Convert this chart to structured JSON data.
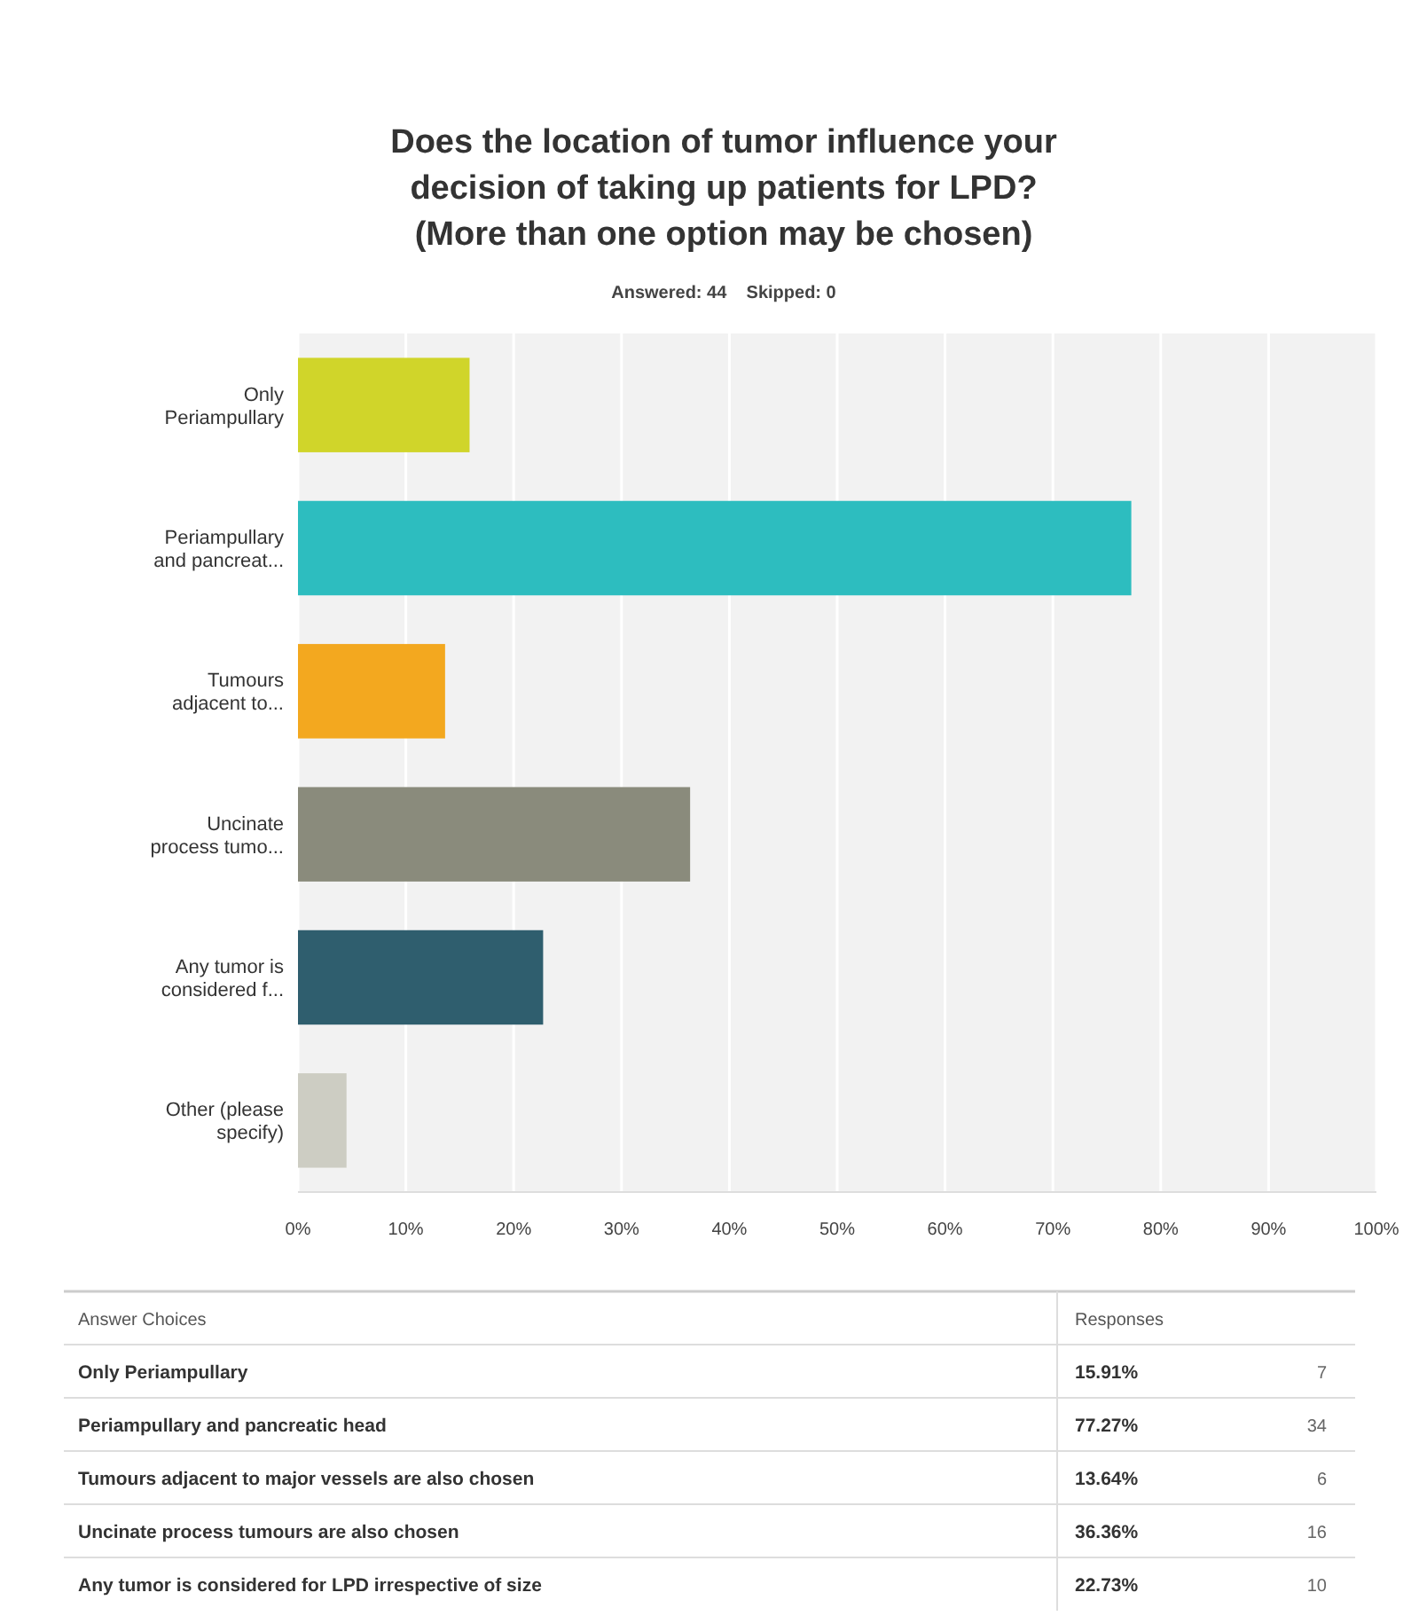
{
  "chart_data": {
    "type": "bar",
    "orientation": "horizontal",
    "title": "Does the location of tumor influence your decision of taking up patients for LPD? (More than one option may be chosen)",
    "subtitle": "Answered: 44    Skipped: 0",
    "categories": [
      "Only Periampullary",
      "Periampullary and pancreat...",
      "Tumours adjacent to...",
      "Uncinate process tumo...",
      "Any tumor is considered f...",
      "Other (please specify)"
    ],
    "values": [
      15.91,
      77.27,
      13.64,
      36.36,
      22.73,
      4.5
    ],
    "colors": [
      "#d0d52a",
      "#2dbdbf",
      "#f3a81f",
      "#8a8b7c",
      "#2f5e6e",
      "#cdcdc3"
    ],
    "xlim": [
      0,
      100
    ],
    "xticks": [
      {
        "value": 0,
        "label": "0%"
      },
      {
        "value": 10,
        "label": "10%"
      },
      {
        "value": 20,
        "label": "20%"
      },
      {
        "value": 30,
        "label": "30%"
      },
      {
        "value": 40,
        "label": "40%"
      },
      {
        "value": 50,
        "label": "50%"
      },
      {
        "value": 60,
        "label": "60%"
      },
      {
        "value": 70,
        "label": "70%"
      },
      {
        "value": 80,
        "label": "80%"
      },
      {
        "value": 90,
        "label": "90%"
      },
      {
        "value": 100,
        "label": "100%"
      }
    ],
    "grid": "x",
    "annotations": [
      "Answer Choices",
      "Responses",
      "Only Periampullary",
      "15.91%",
      "7",
      "Periampullary and pancreatic head",
      "77.27%",
      "34",
      "Tumours adjacent to major vessels are also chosen",
      "13.64%",
      "6",
      "Uncinate process tumours are also chosen",
      "36.36%",
      "16",
      "Any tumor is considered for LPD irrespective of size",
      "22.73%",
      "10"
    ]
  }
}
